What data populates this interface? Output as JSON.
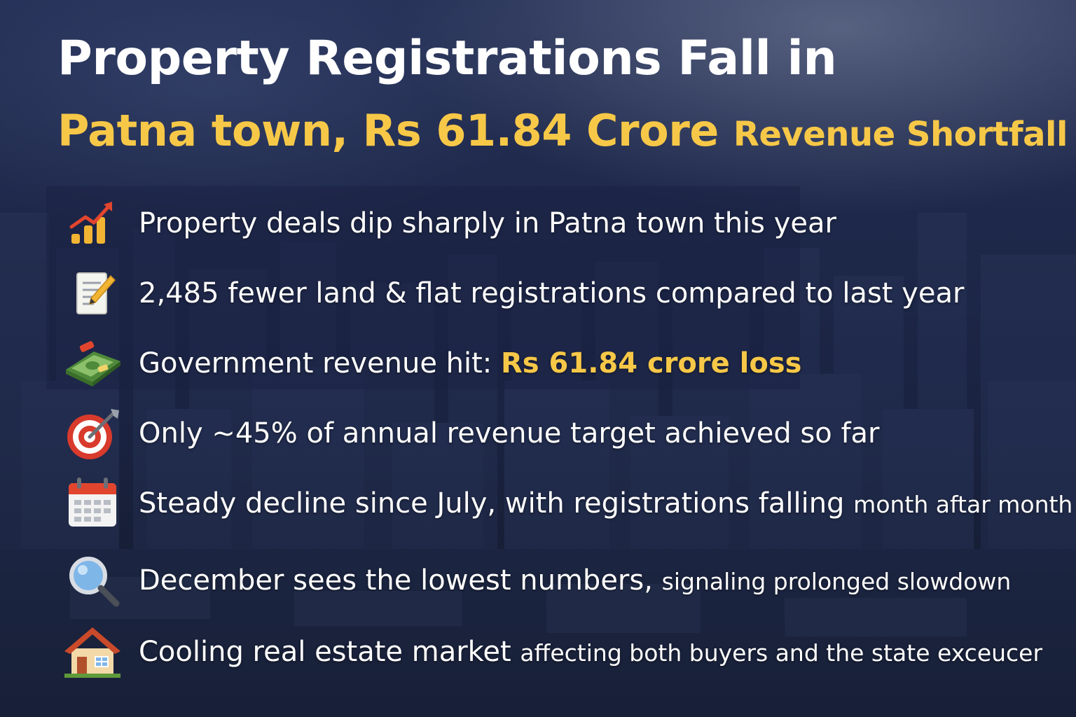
{
  "title": {
    "line1": "Property Registrations Fall in",
    "line2_main": "Patna town, Rs 61.84 Crore",
    "line2_small": "Revenue Shortfall"
  },
  "points": [
    {
      "icon": "bar-chart-rising-icon",
      "text": "Property deals dip sharply in Patna town this year"
    },
    {
      "icon": "memo-pencil-icon",
      "text": "2,485 fewer land & flat registrations compared to last year"
    },
    {
      "icon": "money-bundle-icon",
      "text": "Government revenue hit: ",
      "highlight": "Rs 61.84 crore loss"
    },
    {
      "icon": "target-dart-icon",
      "text": "Only ~45% of annual revenue target achieved so far"
    },
    {
      "icon": "calendar-icon",
      "text": "Steady decline since July, with registrations falling",
      "small": "month aftar month"
    },
    {
      "icon": "magnifying-glass-icon",
      "text": "December sees the lowest numbers,",
      "small": "signaling prolonged slowdown"
    },
    {
      "icon": "house-icon",
      "text": "Cooling real estate market",
      "small": "affecting both buyers and the state exceucer"
    }
  ],
  "colors": {
    "accent": "#f7c848",
    "text": "#ffffff",
    "background": "#1d2745"
  }
}
